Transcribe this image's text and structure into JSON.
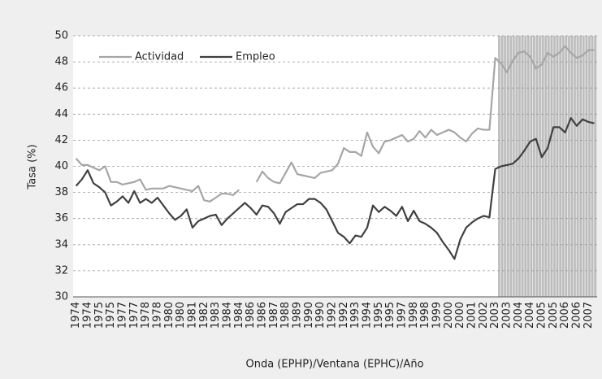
{
  "chart_data": {
    "type": "line",
    "xlabel": "Onda (EPHP)/Ventana (EPHC)/Año",
    "ylabel": "Tasa (%)",
    "categories": [
      "1974",
      null,
      "1974",
      null,
      "1975",
      null,
      "1975",
      null,
      "1977",
      null,
      "1977",
      null,
      "1978",
      null,
      "1978",
      null,
      "1980",
      null,
      "1980",
      null,
      "1981",
      null,
      "1982",
      null,
      "1983",
      null,
      "1984",
      null,
      "1984",
      null,
      "1986",
      null,
      "1986",
      null,
      "1987",
      null,
      "1988",
      null,
      "1989",
      null,
      "1990",
      null,
      "1990",
      null,
      "1992",
      null,
      "1992",
      null,
      "1993",
      null,
      "1994",
      null,
      "1995",
      null,
      "1995",
      null,
      "1997",
      null,
      "1998",
      null,
      "1998",
      null,
      "1999",
      null,
      "2000",
      null,
      "2000",
      null,
      "2001",
      null,
      "2002",
      null,
      "2003",
      null,
      "2003",
      null,
      "2004",
      null,
      "2004",
      null,
      "2005",
      null,
      "2005",
      null,
      "2006",
      null,
      "2006",
      null,
      "2007",
      null
    ],
    "series": [
      {
        "name": "Actividad",
        "color": "#a6a6a6",
        "values": [
          40.6,
          40.1,
          40.1,
          39.9,
          39.7,
          40.0,
          38.8,
          38.8,
          38.6,
          38.7,
          38.8,
          39.0,
          38.2,
          38.3,
          38.3,
          38.3,
          38.5,
          38.4,
          38.3,
          38.2,
          38.1,
          38.5,
          37.4,
          37.3,
          37.6,
          37.9,
          37.9,
          37.8,
          38.2,
          null,
          null,
          38.8,
          39.6,
          39.1,
          38.8,
          38.7,
          39.5,
          40.3,
          39.4,
          39.3,
          39.2,
          39.1,
          39.5,
          39.6,
          39.7,
          40.2,
          41.4,
          41.1,
          41.1,
          40.8,
          42.6,
          41.5,
          41.0,
          41.9,
          42.0,
          42.2,
          42.4,
          41.9,
          42.1,
          42.7,
          42.2,
          42.8,
          42.4,
          42.6,
          42.8,
          42.6,
          42.2,
          41.9,
          42.5,
          42.9,
          42.8,
          42.8,
          48.3,
          47.9,
          47.2,
          48.1,
          48.7,
          48.8,
          48.4,
          47.5,
          47.8,
          48.7,
          48.4,
          48.7,
          49.2,
          48.7,
          48.3,
          48.5,
          48.9,
          48.9
        ]
      },
      {
        "name": "Empleo",
        "color": "#404040",
        "values": [
          38.5,
          39.0,
          39.7,
          38.7,
          38.4,
          38.0,
          37.0,
          37.3,
          37.7,
          37.2,
          38.1,
          37.2,
          37.5,
          37.2,
          37.6,
          37.0,
          36.4,
          35.9,
          36.2,
          36.7,
          35.3,
          35.8,
          36.0,
          36.2,
          36.3,
          35.5,
          36.0,
          36.4,
          36.8,
          37.2,
          36.8,
          36.3,
          37.0,
          36.9,
          36.4,
          35.6,
          36.5,
          36.8,
          37.1,
          37.1,
          37.5,
          37.5,
          37.2,
          36.7,
          35.8,
          34.9,
          34.6,
          34.1,
          34.7,
          34.6,
          35.3,
          37.0,
          36.5,
          36.9,
          36.6,
          36.2,
          36.9,
          35.8,
          36.6,
          35.8,
          35.6,
          35.3,
          34.9,
          34.2,
          33.6,
          32.9,
          34.4,
          35.3,
          35.7,
          36.0,
          36.2,
          36.1,
          39.8,
          40.0,
          40.1,
          40.2,
          40.6,
          41.2,
          41.9,
          42.1,
          40.7,
          41.4,
          43.0,
          43.0,
          42.6,
          43.7,
          43.1,
          43.6,
          43.4,
          43.3
        ]
      }
    ],
    "ylim": [
      30,
      50
    ],
    "yticks": [
      30,
      32,
      34,
      36,
      38,
      40,
      42,
      44,
      46,
      48,
      50
    ],
    "grid": true,
    "legend": "top-left"
  }
}
